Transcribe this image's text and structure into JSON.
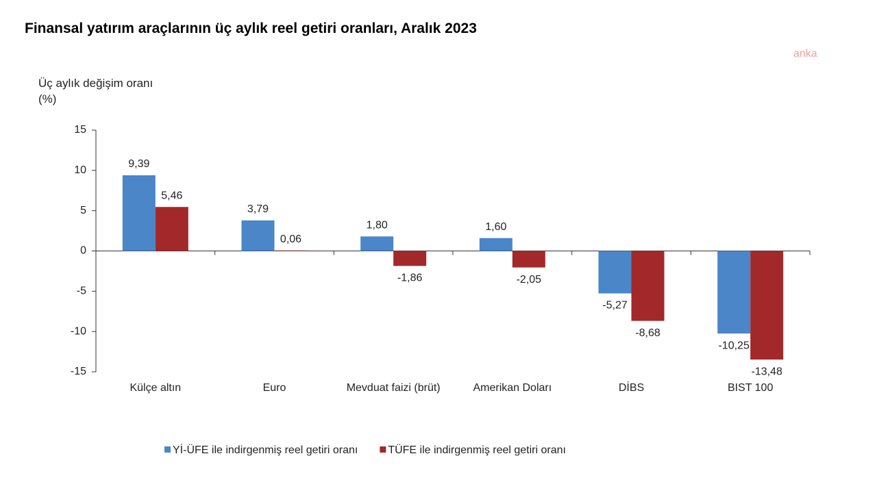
{
  "chart_data": {
    "type": "bar",
    "title": "Finansal yatırım araçlarının üç aylık reel getiri oranları, Aralık 2023",
    "watermark": "anka",
    "y_label": "Üç aylık değişim oranı (%)",
    "categories": [
      "Külçe altın",
      "Euro",
      "Mevduat faizi (brüt)",
      "Amerikan Doları",
      "DİBS",
      "BIST 100"
    ],
    "series": [
      {
        "name": "Yİ-ÜFE ile indirgenmiş reel getiri oranı",
        "color": "#4a86c8",
        "values": [
          9.39,
          3.79,
          1.8,
          1.6,
          -5.27,
          -10.25
        ],
        "value_labels": [
          "9,39",
          "3,79",
          "1,80",
          "1,60",
          "-5,27",
          "-10,25"
        ]
      },
      {
        "name": "TÜFE ile indirgenmiş reel getiri oranı",
        "color": "#a3282a",
        "values": [
          5.46,
          0.06,
          -1.86,
          -2.05,
          -8.68,
          -13.48
        ],
        "value_labels": [
          "5,46",
          "0,06",
          "-1,86",
          "-2,05",
          "-8,68",
          "-13,48"
        ]
      }
    ],
    "ylim": [
      -15,
      15
    ],
    "yticks": [
      15,
      10,
      5,
      0,
      -5,
      -10,
      -15
    ],
    "grid": false,
    "legend": "bottom"
  }
}
